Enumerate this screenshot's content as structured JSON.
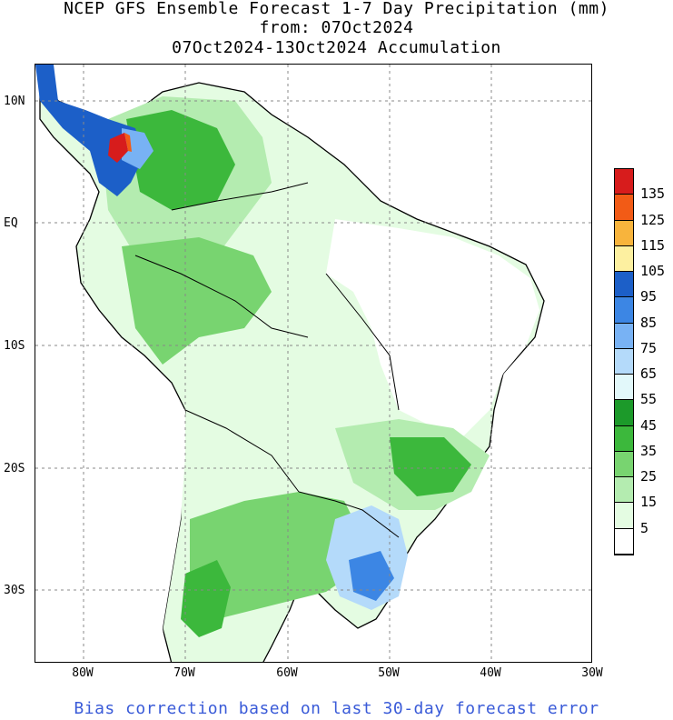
{
  "title": {
    "line1": "NCEP GFS Ensemble Forecast 1-7 Day Precipitation (mm)",
    "line2": "from: 07Oct2024",
    "line3": "07Oct2024-13Oct2024 Accumulation"
  },
  "map": {
    "lat_labels": [
      "10N",
      "EQ",
      "10S",
      "20S",
      "30S"
    ],
    "lon_labels": [
      "80W",
      "70W",
      "60W",
      "50W",
      "40W",
      "30W"
    ],
    "extent": {
      "lon_min": -85,
      "lon_max": -30,
      "lat_min": -36,
      "lat_max": 13
    }
  },
  "legend": {
    "labels": [
      "135",
      "125",
      "115",
      "105",
      "95",
      "85",
      "75",
      "65",
      "55",
      "45",
      "35",
      "25",
      "15",
      "5"
    ],
    "colors": [
      "#d71c1c",
      "#f25b16",
      "#f8b43c",
      "#fdf0a0",
      "#1c5fc8",
      "#3c86e4",
      "#78b2f4",
      "#b4dafa",
      "#e2f8fa",
      "#1c9a2a",
      "#3cb83c",
      "#78d470",
      "#b4ecb0",
      "#e4fce2",
      "#ffffff"
    ]
  },
  "footer": "Bias correction based on last 30-day forecast error"
}
